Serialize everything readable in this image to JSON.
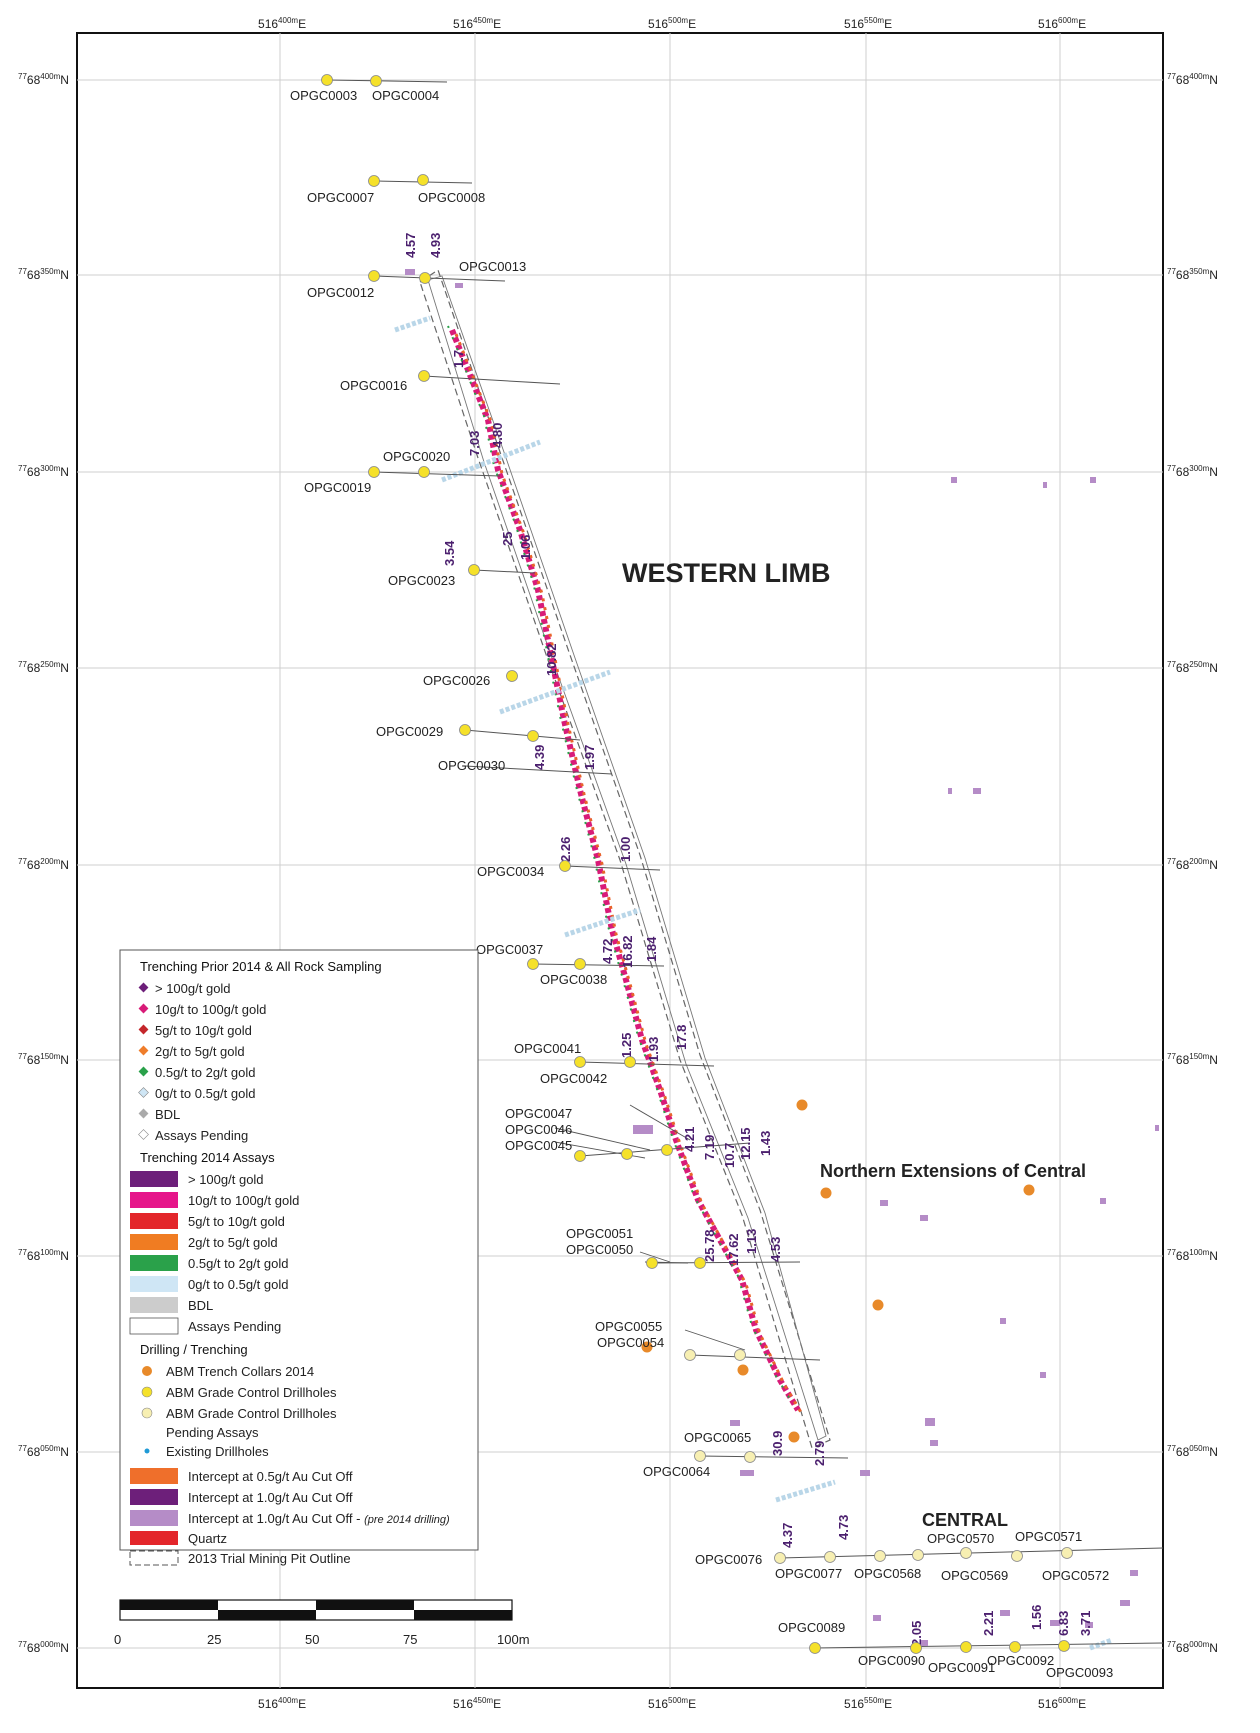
{
  "map": {
    "title_western": "WESTERN LIMB",
    "title_northern": "Northern Extensions of Central",
    "title_central": "CENTRAL",
    "colors": {
      "gc_yellow": "#f5e12a",
      "gc_pale": "#f7efb2",
      "trench_orange": "#e88a2a",
      "purple": "#6d1f7a",
      "magenta": "#d81b78",
      "red": "#e3262b",
      "orange": "#ef7d2b",
      "green": "#2aa14a",
      "lightblue": "#cfe6f5",
      "lilac": "#b58cc7",
      "grey": "#cccccc"
    }
  },
  "grid": {
    "easting_labels": [
      {
        "pre": "5",
        "mid": "16",
        "sup": "400m",
        "post": "E"
      },
      {
        "pre": "5",
        "mid": "16",
        "sup": "450m",
        "post": "E"
      },
      {
        "pre": "5",
        "mid": "16",
        "sup": "500m",
        "post": "E"
      },
      {
        "pre": "5",
        "mid": "16",
        "sup": "550m",
        "post": "E"
      },
      {
        "pre": "5",
        "mid": "16",
        "sup": "600m",
        "post": "E"
      }
    ],
    "northing_labels": [
      {
        "pre": "77",
        "mid": "68",
        "sup": "400m",
        "post": "N"
      },
      {
        "pre": "77",
        "mid": "68",
        "sup": "350m",
        "post": "N"
      },
      {
        "pre": "77",
        "mid": "68",
        "sup": "300m",
        "post": "N"
      },
      {
        "pre": "77",
        "mid": "68",
        "sup": "250m",
        "post": "N"
      },
      {
        "pre": "77",
        "mid": "68",
        "sup": "200m",
        "post": "N"
      },
      {
        "pre": "77",
        "mid": "68",
        "sup": "150m",
        "post": "N"
      },
      {
        "pre": "77",
        "mid": "68",
        "sup": "100m",
        "post": "N"
      },
      {
        "pre": "77",
        "mid": "68",
        "sup": "050m",
        "post": "N"
      },
      {
        "pre": "77",
        "mid": "68",
        "sup": "000m",
        "post": "N"
      }
    ]
  },
  "holes": [
    {
      "label": "OPGC0003",
      "type": "gc"
    },
    {
      "label": "OPGC0004",
      "type": "gc"
    },
    {
      "label": "OPGC0007",
      "type": "gc"
    },
    {
      "label": "OPGC0008",
      "type": "gc"
    },
    {
      "label": "OPGC0012",
      "type": "gc"
    },
    {
      "label": "OPGC0013",
      "type": "gc"
    },
    {
      "label": "OPGC0016",
      "type": "gc"
    },
    {
      "label": "OPGC0019",
      "type": "gc"
    },
    {
      "label": "OPGC0020",
      "type": "gc"
    },
    {
      "label": "OPGC0023",
      "type": "gc"
    },
    {
      "label": "OPGC0026",
      "type": "gc"
    },
    {
      "label": "OPGC0029",
      "type": "gc"
    },
    {
      "label": "OPGC0030",
      "type": "gc"
    },
    {
      "label": "OPGC0034",
      "type": "gc"
    },
    {
      "label": "OPGC0037",
      "type": "gc"
    },
    {
      "label": "OPGC0038",
      "type": "gc"
    },
    {
      "label": "OPGC0041",
      "type": "gc"
    },
    {
      "label": "OPGC0042",
      "type": "gc"
    },
    {
      "label": "OPGC0047",
      "type": "gc"
    },
    {
      "label": "OPGC0046",
      "type": "gc"
    },
    {
      "label": "OPGC0045",
      "type": "gc"
    },
    {
      "label": "OPGC0051",
      "type": "gc"
    },
    {
      "label": "OPGC0050",
      "type": "gc"
    },
    {
      "label": "OPGC0055",
      "type": "pale"
    },
    {
      "label": "OPGC0054",
      "type": "pale"
    },
    {
      "label": "OPGC0065",
      "type": "pale"
    },
    {
      "label": "OPGC0064",
      "type": "pale"
    },
    {
      "label": "OPGC0076",
      "type": "pale"
    },
    {
      "label": "OPGC0077",
      "type": "pale"
    },
    {
      "label": "OPGC0568",
      "type": "pale"
    },
    {
      "label": "OPGC0569",
      "type": "pale"
    },
    {
      "label": "OPGC0570",
      "type": "pale"
    },
    {
      "label": "OPGC0571",
      "type": "pale"
    },
    {
      "label": "OPGC0572",
      "type": "pale"
    },
    {
      "label": "OPGC0089",
      "type": "gc"
    },
    {
      "label": "OPGC0090",
      "type": "gc"
    },
    {
      "label": "OPGC0091",
      "type": "gc"
    },
    {
      "label": "OPGC0092",
      "type": "gc"
    },
    {
      "label": "OPGC0093",
      "type": "gc"
    }
  ],
  "intercepts": [
    "4.57",
    "4.93",
    "1.7",
    "7.03",
    "4.80",
    "3.54",
    "25",
    "1.06",
    "10.82",
    "4.39",
    "1.97",
    "2.26",
    "1.00",
    "4.72",
    "16.82",
    "1.84",
    "1.25",
    "1.93",
    "17.8",
    "4.21",
    "7.19",
    "10.7",
    "12.15",
    "1.43",
    "25.78",
    "17.62",
    "1.13",
    "4.53",
    "30.9",
    "2.79",
    "4.37",
    "4.73",
    "2.05",
    "2.21",
    "1.56",
    "6.83",
    "3.71"
  ],
  "legend": {
    "section1_title": "Trenching Prior 2014 & All Rock Sampling",
    "section1": [
      {
        "label": "> 100g/t gold",
        "color": "#6d1f7a"
      },
      {
        "label": "10g/t   to     100g/t gold",
        "color": "#d81b78"
      },
      {
        "label": "5g/t     to     10g/t gold",
        "color": "#c4262b"
      },
      {
        "label": "2g/t     to     5g/t gold",
        "color": "#ef7d2b"
      },
      {
        "label": "0.5g/t to     2g/t gold",
        "color": "#2aa14a"
      },
      {
        "label": "0g/t     to     0.5g/t gold",
        "color": "#cfe6f5"
      },
      {
        "label": "BDL",
        "color": "#aaaaaa"
      },
      {
        "label": "Assays Pending",
        "color": "#ffffff"
      }
    ],
    "section2_title": "Trenching 2014 Assays",
    "section2": [
      {
        "label": "> 100g/t gold",
        "color": "#6d1f7a"
      },
      {
        "label": "10g/t   to     100g/t gold",
        "color": "#e6168a"
      },
      {
        "label": "5g/t     to     10g/t gold",
        "color": "#e3262b"
      },
      {
        "label": "2g/t     to     5g/t gold",
        "color": "#f07c22"
      },
      {
        "label": "0.5g/t to     2g/t gold",
        "color": "#2aa14a"
      },
      {
        "label": "0g/t     to     0.5g/t gold",
        "color": "#cfe6f5"
      },
      {
        "label": "BDL",
        "color": "#cccccc"
      },
      {
        "label": "Assays Pending",
        "color": "#ffffff"
      }
    ],
    "section3_title": "Drilling / Trenching",
    "section3": [
      {
        "label": "ABM Trench Collars 2014",
        "color": "#e88a2a"
      },
      {
        "label": "ABM Grade Control Drillholes",
        "color": "#f5e12a"
      },
      {
        "label": "ABM Grade Control Drillholes",
        "color": "#f7efb2"
      },
      {
        "label": "Pending Assays",
        "color": ""
      },
      {
        "label": "Existing Drillholes",
        "color": "#1f9ad6"
      }
    ],
    "section4": [
      {
        "label": "Intercept at 0.5g/t Au Cut Off",
        "color": "#ef6f2b"
      },
      {
        "label": "Intercept at 1.0g/t Au Cut Off",
        "color": "#6d1f7a"
      },
      {
        "label": "Intercept at 1.0g/t Au Cut Off",
        "color": "#b58cc7"
      },
      {
        "label": "Quartz",
        "color": "#e3262b"
      },
      {
        "label": "2013 Trial Mining Pit Outline",
        "color": ""
      }
    ],
    "pre2014_note": "(pre 2014 drilling)"
  },
  "scale_bar": {
    "ticks": [
      "0",
      "25",
      "50",
      "75",
      "100m"
    ]
  }
}
